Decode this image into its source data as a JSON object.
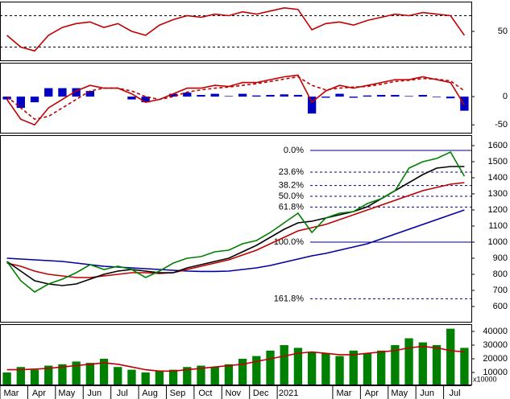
{
  "chart_data": {
    "type": "stock",
    "categories": [
      "Mar",
      null,
      "Apr",
      null,
      "May",
      null,
      "Jun",
      null,
      "Jul",
      null,
      "Aug",
      null,
      "Sep",
      null,
      "Oct",
      null,
      "Nov",
      null,
      "Dec",
      null,
      "2021",
      null,
      null,
      null,
      "Mar",
      null,
      "Apr",
      null,
      "May",
      null,
      "Jun",
      null,
      "Jul",
      null
    ],
    "panels": [
      {
        "kind": "rsi",
        "ylim": [
          13,
          88
        ],
        "yticks": [
          50
        ],
        "ref_lines": [
          30,
          70
        ],
        "series": [
          {
            "style": "line",
            "color": "#c00000",
            "values": [
              45,
              30,
              25,
              45,
              55,
              60,
              62,
              55,
              60,
              50,
              45,
              58,
              65,
              70,
              68,
              72,
              70,
              75,
              72,
              76,
              80,
              78,
              52,
              60,
              62,
              58,
              64,
              68,
              72,
              70,
              74,
              72,
              70,
              45
            ]
          }
        ]
      },
      {
        "kind": "macd",
        "ylim": [
          -64,
          60
        ],
        "yticks": [
          -50,
          0
        ],
        "series": [
          {
            "style": "bars",
            "color": "#0000c0",
            "values": [
              -5,
              -20,
              -10,
              15,
              15,
              15,
              10,
              0,
              0,
              -5,
              -10,
              0,
              5,
              7,
              3,
              5,
              1,
              5,
              2,
              3,
              4,
              3,
              -30,
              -2,
              5,
              -2,
              2,
              3,
              3,
              1,
              3,
              -1,
              -3,
              -25
            ]
          },
          {
            "style": "line",
            "color": "#c00000",
            "values": [
              -5,
              -40,
              -50,
              -20,
              -5,
              10,
              20,
              15,
              15,
              5,
              -10,
              -5,
              5,
              15,
              15,
              20,
              18,
              25,
              25,
              30,
              35,
              38,
              -10,
              10,
              20,
              15,
              20,
              25,
              30,
              30,
              35,
              30,
              25,
              -15
            ]
          },
          {
            "style": "dashed",
            "color": "#c00000",
            "values": [
              0,
              -20,
              -40,
              -35,
              -20,
              -5,
              10,
              15,
              15,
              10,
              0,
              -5,
              0,
              8,
              12,
              15,
              17,
              20,
              23,
              27,
              31,
              35,
              20,
              12,
              15,
              17,
              18,
              22,
              27,
              29,
              32,
              31,
              28,
              10
            ]
          }
        ]
      },
      {
        "kind": "price",
        "ylim": [
          505,
          1665
        ],
        "yticks": [
          600,
          700,
          800,
          900,
          1000,
          1100,
          1200,
          1300,
          1400,
          1500,
          1600
        ],
        "fib_levels": [
          {
            "value": 1570,
            "label": "0.0%"
          },
          {
            "value": 1435,
            "label": "23.6%"
          },
          {
            "value": 1352,
            "label": "38.2%"
          },
          {
            "value": 1285,
            "label": "50.0%"
          },
          {
            "value": 1218,
            "label": "61.8%"
          },
          {
            "value": 1000,
            "label": "100.0%"
          },
          {
            "value": 648,
            "label": "161.8%"
          }
        ],
        "series": [
          {
            "style": "line",
            "color": "#0000a0",
            "values": [
              900,
              895,
              890,
              885,
              880,
              870,
              860,
              850,
              845,
              840,
              835,
              830,
              825,
              820,
              818,
              818,
              820,
              830,
              840,
              855,
              875,
              895,
              915,
              930,
              950,
              970,
              990,
              1020,
              1050,
              1080,
              1110,
              1140,
              1170,
              1200
            ]
          },
          {
            "style": "line",
            "color": "#c00000",
            "values": [
              870,
              850,
              820,
              800,
              790,
              780,
              780,
              790,
              800,
              810,
              810,
              805,
              810,
              830,
              850,
              870,
              890,
              920,
              950,
              990,
              1030,
              1070,
              1090,
              1110,
              1140,
              1170,
              1200,
              1230,
              1260,
              1290,
              1320,
              1340,
              1360,
              1370
            ]
          },
          {
            "style": "line",
            "color": "#000000",
            "values": [
              880,
              820,
              760,
              740,
              730,
              740,
              770,
              800,
              820,
              830,
              820,
              810,
              810,
              840,
              860,
              880,
              900,
              940,
              980,
              1030,
              1080,
              1120,
              1130,
              1150,
              1170,
              1190,
              1220,
              1270,
              1320,
              1370,
              1420,
              1460,
              1470,
              1470
            ]
          },
          {
            "style": "line",
            "color": "#008000",
            "values": [
              880,
              760,
              690,
              740,
              770,
              810,
              860,
              830,
              850,
              830,
              780,
              820,
              870,
              900,
              910,
              940,
              950,
              990,
              1010,
              1060,
              1120,
              1180,
              1060,
              1150,
              1180,
              1190,
              1240,
              1270,
              1320,
              1460,
              1500,
              1520,
              1560,
              1410
            ]
          }
        ]
      },
      {
        "kind": "volume",
        "ylim": [
          1200,
          45300
        ],
        "yticks": [
          10000,
          20000,
          30000,
          40000
        ],
        "unit_label": "x10000",
        "series": [
          {
            "style": "bars",
            "color": "#008000",
            "values": [
              10000,
              14000,
              12000,
              15000,
              16000,
              18000,
              17000,
              20000,
              14000,
              12000,
              10000,
              11000,
              12000,
              14000,
              15000,
              14000,
              16000,
              20000,
              22000,
              26000,
              30000,
              28000,
              25000,
              24000,
              22000,
              26000,
              24000,
              26000,
              30000,
              35000,
              32000,
              30000,
              42000,
              28000
            ]
          },
          {
            "style": "line",
            "color": "#c00000",
            "values": [
              12000,
              12000,
              12500,
              13000,
              14000,
              15000,
              16000,
              17000,
              16000,
              14000,
              12000,
              11000,
              11000,
              12000,
              13000,
              14000,
              15000,
              16000,
              18000,
              20000,
              22000,
              24000,
              25000,
              24000,
              23000,
              23000,
              24000,
              25000,
              26000,
              28000,
              29000,
              28000,
              26000,
              25000
            ]
          }
        ]
      }
    ]
  }
}
